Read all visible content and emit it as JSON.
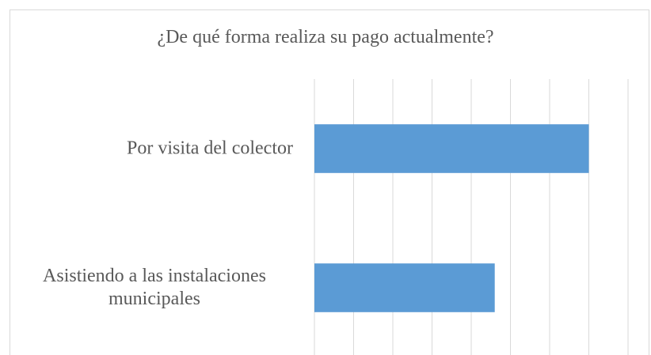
{
  "chart_data": {
    "type": "bar",
    "orientation": "horizontal",
    "title": "¿De qué forma realiza su pago actualmente?",
    "categories": [
      "Por visita del colector",
      "Asistiendo a las instalaciones municipales"
    ],
    "values": [
      7,
      4.6
    ],
    "color": "#5b9bd5",
    "xlim": [
      0,
      8
    ],
    "xticks": [
      0,
      1,
      2,
      3,
      4,
      5,
      6,
      7,
      8
    ],
    "grid": true
  }
}
